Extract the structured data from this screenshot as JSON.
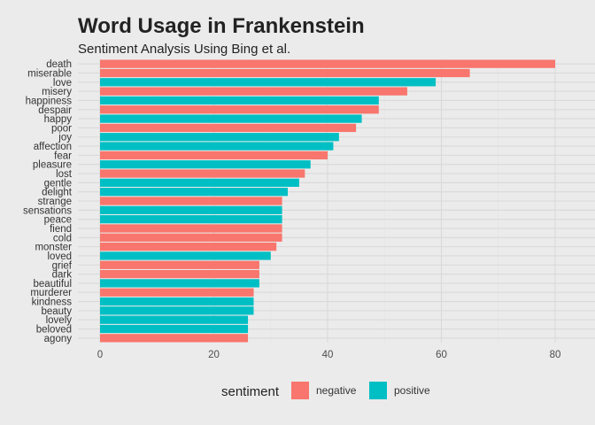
{
  "chart_data": {
    "type": "bar",
    "orientation": "horizontal",
    "title": "Word Usage in Frankenstein",
    "subtitle": "Sentiment Analysis Using Bing et al.",
    "xlabel": "",
    "ylabel": "",
    "xlim": [
      0,
      80
    ],
    "x_ticks": [
      0,
      20,
      40,
      60,
      80
    ],
    "grid": true,
    "legend": {
      "title": "sentiment",
      "position": "bottom",
      "entries": [
        {
          "name": "negative",
          "color": "#f8766d"
        },
        {
          "name": "positive",
          "color": "#00bfc4"
        }
      ]
    },
    "categories": [
      "death",
      "miserable",
      "love",
      "misery",
      "happiness",
      "despair",
      "happy",
      "poor",
      "joy",
      "affection",
      "fear",
      "pleasure",
      "lost",
      "gentle",
      "delight",
      "strange",
      "sensations",
      "peace",
      "fiend",
      "cold",
      "monster",
      "loved",
      "grief",
      "dark",
      "beautiful",
      "murderer",
      "kindness",
      "beauty",
      "lovely",
      "beloved",
      "agony"
    ],
    "values": [
      80,
      65,
      59,
      54,
      49,
      49,
      46,
      45,
      42,
      41,
      40,
      37,
      36,
      35,
      33,
      32,
      32,
      32,
      32,
      32,
      31,
      30,
      28,
      28,
      28,
      27,
      27,
      27,
      26,
      26,
      26
    ],
    "sentiment": [
      "negative",
      "negative",
      "positive",
      "negative",
      "positive",
      "negative",
      "positive",
      "negative",
      "positive",
      "positive",
      "negative",
      "positive",
      "negative",
      "positive",
      "positive",
      "negative",
      "positive",
      "positive",
      "negative",
      "negative",
      "negative",
      "positive",
      "negative",
      "negative",
      "positive",
      "negative",
      "positive",
      "positive",
      "positive",
      "positive",
      "negative"
    ]
  }
}
